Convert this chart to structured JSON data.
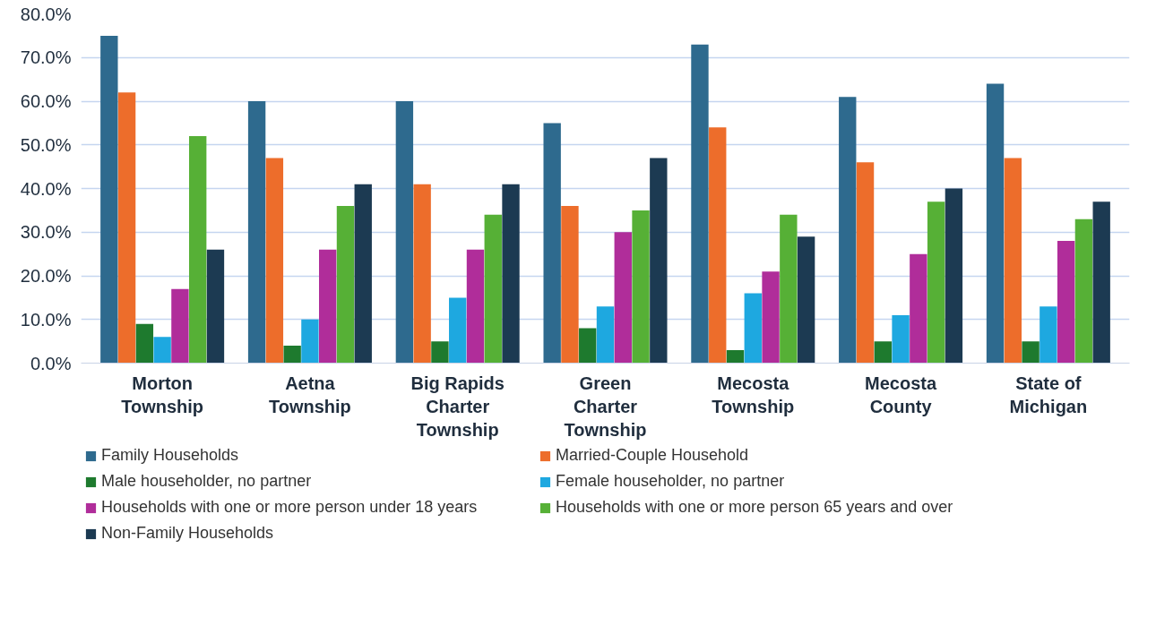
{
  "chart_data": {
    "type": "bar",
    "categories": [
      "Morton Township",
      "Aetna Township",
      "Big Rapids Charter Township",
      "Green Charter Township",
      "Mecosta Township",
      "Mecosta County",
      "State of Michigan"
    ],
    "ylim": [
      0,
      80
    ],
    "yticks": [
      {
        "value": 0,
        "label": "0.0%"
      },
      {
        "value": 10,
        "label": "10.0%"
      },
      {
        "value": 20,
        "label": "20.0%"
      },
      {
        "value": 30,
        "label": "30.0%"
      },
      {
        "value": 40,
        "label": "40.0%"
      },
      {
        "value": 50,
        "label": "50.0%"
      },
      {
        "value": 60,
        "label": "60.0%"
      },
      {
        "value": 70,
        "label": "70.0%"
      },
      {
        "value": 80,
        "label": "80.0%"
      }
    ],
    "grid": "y",
    "legend": "bottom",
    "series": [
      {
        "name": "Family Households",
        "color": "#2e6a8e",
        "values": [
          75,
          60,
          60,
          55,
          73,
          61,
          64
        ]
      },
      {
        "name": "Married-Couple Household",
        "color": "#ed6d2b",
        "values": [
          62,
          47,
          41,
          36,
          54,
          46,
          47
        ]
      },
      {
        "name": "Male householder, no partner",
        "color": "#1e7a2e",
        "values": [
          9,
          4,
          5,
          8,
          3,
          5,
          5
        ]
      },
      {
        "name": "Female householder, no partner",
        "color": "#1ea8e0",
        "values": [
          6,
          10,
          15,
          13,
          16,
          11,
          13
        ]
      },
      {
        "name": "Households with one or more person under 18 years",
        "color": "#b02d9a",
        "values": [
          17,
          26,
          26,
          30,
          21,
          25,
          28
        ]
      },
      {
        "name": "Households with one or more person 65 years and over",
        "color": "#56b036",
        "values": [
          52,
          36,
          34,
          35,
          34,
          37,
          33
        ]
      },
      {
        "name": "Non-Family Households",
        "color": "#1c3a52",
        "values": [
          26,
          41,
          41,
          47,
          29,
          40,
          37
        ]
      }
    ]
  }
}
